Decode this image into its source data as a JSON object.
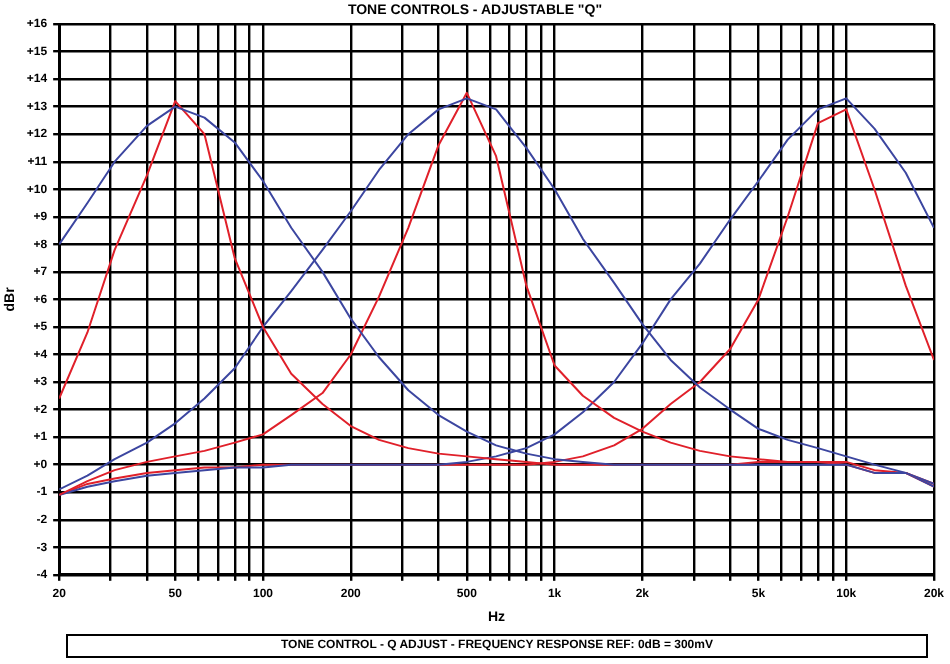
{
  "chart_data": {
    "type": "line",
    "title": "TONE CONTROLS - ADJUSTABLE \"Q\"",
    "xlabel": "Hz",
    "ylabel": "dBr",
    "annotations": [
      "TONE CONTROL - Q ADJUST - FREQUENCY RESPONSE REF: 0dB = 300mV"
    ],
    "log": "x",
    "grid": true,
    "legend": false,
    "marker": "none",
    "xlim": [
      20,
      20000
    ],
    "ylim": [
      -4,
      16
    ],
    "xticks": [
      20,
      {
        "value": 30,
        "label": null
      },
      {
        "value": 40,
        "label": null
      },
      50,
      {
        "value": 60,
        "label": null
      },
      {
        "value": 70,
        "label": null
      },
      {
        "value": 80,
        "label": null
      },
      {
        "value": 90,
        "label": null
      },
      100,
      200,
      {
        "value": 300,
        "label": null
      },
      {
        "value": 400,
        "label": null
      },
      500,
      {
        "value": 600,
        "label": null
      },
      {
        "value": 700,
        "label": null
      },
      {
        "value": 800,
        "label": null
      },
      {
        "value": 900,
        "label": null
      },
      {
        "value": 1000,
        "label": "1k"
      },
      {
        "value": 2000,
        "label": "2k"
      },
      {
        "value": 3000,
        "label": null
      },
      {
        "value": 4000,
        "label": null
      },
      {
        "value": 5000,
        "label": "5k"
      },
      {
        "value": 6000,
        "label": null
      },
      {
        "value": 7000,
        "label": null
      },
      {
        "value": 8000,
        "label": null
      },
      {
        "value": 9000,
        "label": null
      },
      {
        "value": 10000,
        "label": "10k"
      },
      {
        "value": 20000,
        "label": "20k"
      }
    ],
    "yticks": [
      -4,
      -3,
      -2,
      -1,
      {
        "value": 0,
        "label": "+0"
      },
      {
        "value": 1,
        "label": "+1"
      },
      {
        "value": 2,
        "label": "+2"
      },
      {
        "value": 3,
        "label": "+3"
      },
      {
        "value": 4,
        "label": "+4"
      },
      {
        "value": 5,
        "label": "+5"
      },
      {
        "value": 6,
        "label": "+6"
      },
      {
        "value": 7,
        "label": "+7"
      },
      {
        "value": 8,
        "label": "+8"
      },
      {
        "value": 9,
        "label": "+9"
      },
      {
        "value": 10,
        "label": "+10"
      },
      {
        "value": 11,
        "label": "+11"
      },
      {
        "value": 12,
        "label": "+12"
      },
      {
        "value": 13,
        "label": "+13"
      },
      {
        "value": 14,
        "label": "+14"
      },
      {
        "value": 15,
        "label": "+15"
      },
      {
        "value": 16,
        "label": "+16"
      }
    ],
    "x": [
      20,
      25,
      31,
      40,
      50,
      63,
      80,
      100,
      125,
      160,
      200,
      250,
      315,
      400,
      500,
      630,
      800,
      1000,
      1250,
      1600,
      2000,
      2500,
      3150,
      4000,
      5000,
      6300,
      8000,
      10000,
      12500,
      16000,
      20000
    ],
    "series": [
      {
        "color": "#3c46a0",
        "values": [
          8.0,
          9.5,
          11.0,
          12.3,
          13.0,
          12.6,
          11.7,
          10.3,
          8.6,
          7.0,
          5.3,
          3.9,
          2.7,
          1.8,
          1.2,
          0.7,
          0.4,
          0.2,
          0.1,
          0,
          0,
          0,
          0,
          0,
          0,
          0,
          0,
          0,
          -0.3,
          -0.3,
          -0.7
        ]
      },
      {
        "color": "#e0202a",
        "values": [
          2.4,
          4.8,
          7.8,
          10.5,
          13.2,
          12.0,
          7.5,
          5.0,
          3.3,
          2.2,
          1.4,
          0.9,
          0.6,
          0.4,
          0.3,
          0.2,
          0.1,
          0,
          0,
          0,
          0,
          0,
          0,
          0,
          0.1,
          0.1,
          0.1,
          0,
          -0.3,
          -0.3,
          -0.7
        ]
      },
      {
        "color": "#3c46a0",
        "values": [
          -0.9,
          -0.4,
          0.2,
          0.8,
          1.5,
          2.4,
          3.5,
          5.0,
          6.3,
          7.8,
          9.2,
          10.7,
          12.0,
          12.9,
          13.3,
          12.9,
          11.5,
          10.0,
          8.2,
          6.6,
          5.1,
          3.8,
          2.8,
          2.0,
          1.3,
          0.9,
          0.6,
          0.3,
          0,
          -0.3,
          -0.8
        ]
      },
      {
        "color": "#e0202a",
        "values": [
          -1.1,
          -0.6,
          -0.2,
          0.1,
          0.3,
          0.5,
          0.8,
          1.1,
          1.8,
          2.6,
          4.0,
          6.1,
          8.6,
          11.6,
          13.5,
          11.2,
          6.5,
          3.6,
          2.5,
          1.7,
          1.2,
          0.8,
          0.5,
          0.3,
          0.2,
          0.1,
          0.1,
          0.1,
          -0.2,
          -0.3,
          -0.8
        ]
      },
      {
        "color": "#3c46a0",
        "values": [
          -1.1,
          -0.8,
          -0.6,
          -0.4,
          -0.3,
          -0.2,
          -0.1,
          -0.1,
          0,
          0,
          0,
          0,
          0,
          0,
          0.1,
          0.3,
          0.6,
          1.1,
          1.9,
          3.0,
          4.4,
          6.0,
          7.3,
          8.9,
          10.3,
          11.8,
          12.9,
          13.3,
          12.2,
          10.6,
          8.6
        ]
      },
      {
        "color": "#e0202a",
        "values": [
          -1.1,
          -0.7,
          -0.5,
          -0.3,
          -0.2,
          -0.1,
          -0.1,
          0,
          0,
          0,
          0,
          0,
          0,
          0,
          0,
          0,
          0,
          0.1,
          0.3,
          0.7,
          1.3,
          2.2,
          3.0,
          4.2,
          6.0,
          9.0,
          12.4,
          12.9,
          10.0,
          6.5,
          3.8
        ]
      }
    ]
  }
}
